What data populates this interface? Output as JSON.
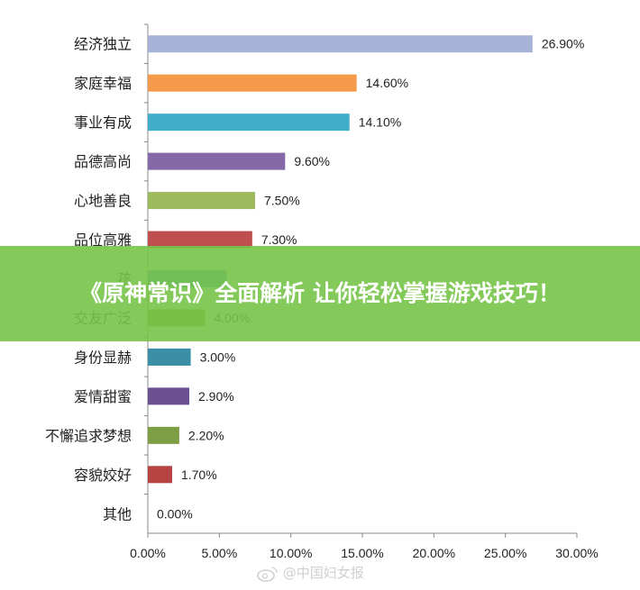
{
  "chart_data": {
    "type": "bar",
    "orientation": "horizontal",
    "categories": [
      "经济独立",
      "家庭幸福",
      "事业有成",
      "品德高尚",
      "心地善良",
      "品位高雅",
      "孩",
      "交友广泛",
      "身份显赫",
      "爱情甜蜜",
      "不懈追求梦想",
      "容貌姣好",
      "其他"
    ],
    "values": [
      26.9,
      14.6,
      14.1,
      9.6,
      7.5,
      7.3,
      5.5,
      4.0,
      3.0,
      2.9,
      2.2,
      1.7,
      0.0
    ],
    "value_labels": [
      "26.90%",
      "14.60%",
      "14.10%",
      "9.60%",
      "7.50%",
      "7.30%",
      "",
      "4.00%",
      "3.00%",
      "2.90%",
      "2.20%",
      "1.70%",
      "0.00%"
    ],
    "colors": [
      "#a6b3d6",
      "#f59a4a",
      "#40aec8",
      "#8468a8",
      "#9dbb5c",
      "#bf4f4e",
      "#4a8fd0",
      "#7ea531",
      "#3a8ea5",
      "#6b4f91",
      "#7e9e43",
      "#b84343",
      "#4f81bd"
    ],
    "xlim": [
      0,
      30
    ],
    "xticks": [
      "0.00%",
      "5.00%",
      "10.00%",
      "15.00%",
      "20.00%",
      "25.00%",
      "30.00%"
    ],
    "grid": false,
    "legend": "none"
  },
  "banner": {
    "title": "《原神常识》全面解析 让你轻松掌握游戏技巧！"
  },
  "watermark": {
    "text": "@中国妇女报",
    "icon": "weibo-icon"
  }
}
